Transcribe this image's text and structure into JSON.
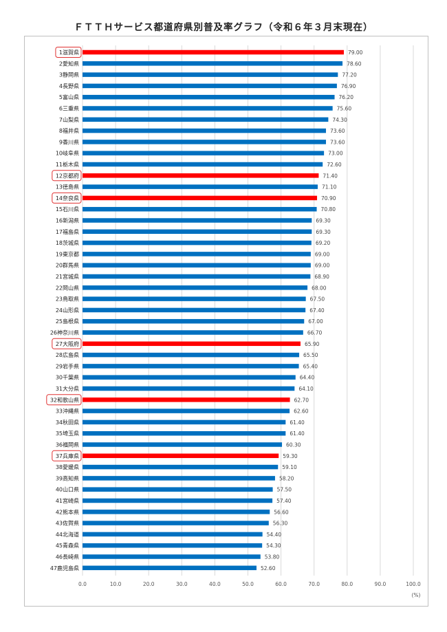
{
  "chart_data": {
    "type": "bar",
    "orientation": "horizontal",
    "title": "ＦＴＴＨサービス都道府県別普及率グラフ（令和６年３月末現在）",
    "unit": "(%)",
    "xlim": [
      0,
      100
    ],
    "ticks": [
      "0.0",
      "10.0",
      "20.0",
      "30.0",
      "40.0",
      "50.0",
      "60.0",
      "70.0",
      "80.0",
      "90.0",
      "100.0"
    ],
    "grid": true,
    "colors": {
      "default": "#0070c0",
      "highlight": "#ff0000",
      "box": "#e03030"
    },
    "categories": [
      "1滋賀県",
      "2愛知県",
      "3静岡県",
      "4長野県",
      "5富山県",
      "6三重県",
      "7山梨県",
      "8福井県",
      "9香川県",
      "10岐阜県",
      "11栃木県",
      "12京都府",
      "13徳島県",
      "14奈良県",
      "15石川県",
      "16新潟県",
      "17福島県",
      "18茨城県",
      "19東京都",
      "20群馬県",
      "21宮城県",
      "22岡山県",
      "23鳥取県",
      "24山形県",
      "25島根県",
      "26神奈川県",
      "27大阪府",
      "28広島県",
      "29岩手県",
      "30千葉県",
      "31大分県",
      "32和歌山県",
      "33沖縄県",
      "34秋田県",
      "35埼玉県",
      "36福岡県",
      "37兵庫県",
      "38愛媛県",
      "39高知県",
      "40山口県",
      "41宮崎県",
      "42熊本県",
      "43佐賀県",
      "44北海道",
      "45青森県",
      "46長崎県",
      "47鹿児島県"
    ],
    "values": [
      79.0,
      78.6,
      77.2,
      76.9,
      76.2,
      75.6,
      74.3,
      73.6,
      73.6,
      73.0,
      72.6,
      71.4,
      71.1,
      70.9,
      70.8,
      69.3,
      69.3,
      69.2,
      69.0,
      69.0,
      68.9,
      68.0,
      67.5,
      67.4,
      67.0,
      66.7,
      65.9,
      65.5,
      65.4,
      64.4,
      64.1,
      62.7,
      62.6,
      61.4,
      61.4,
      60.3,
      59.3,
      59.1,
      58.2,
      57.5,
      57.4,
      56.6,
      56.3,
      54.4,
      54.3,
      53.8,
      52.6
    ],
    "value_labels": [
      "79.00",
      "78.60",
      "77.20",
      "76.90",
      "76.20",
      "75.60",
      "74.30",
      "73.60",
      "73.60",
      "73.00",
      "72.60",
      "71.40",
      "71.10",
      "70.90",
      "70.80",
      "69.30",
      "69.30",
      "69.20",
      "69.00",
      "69.00",
      "68.90",
      "68.00",
      "67.50",
      "67.40",
      "67.00",
      "66.70",
      "65.90",
      "65.50",
      "65.40",
      "64.40",
      "64.10",
      "62.70",
      "62.60",
      "61.40",
      "61.40",
      "60.30",
      "59.30",
      "59.10",
      "58.20",
      "57.50",
      "57.40",
      "56.60",
      "56.30",
      "54.40",
      "54.30",
      "53.80",
      "52.60"
    ],
    "highlighted": [
      "1滋賀県",
      "12京都府",
      "14奈良県",
      "27大阪府",
      "32和歌山県",
      "37兵庫県"
    ]
  }
}
